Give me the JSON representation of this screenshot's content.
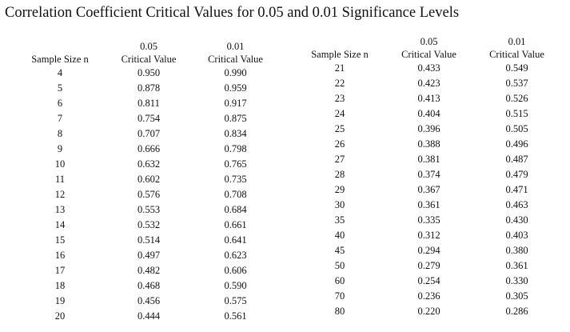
{
  "title": "Correlation Coefficient Critical Values for 0.05 and 0.01 Significance Levels",
  "tables": {
    "left": {
      "headers": {
        "sample_size": "Sample Size n",
        "sig_05": "0.05",
        "sig_01": "0.01",
        "critical_value_05": "Critical Value",
        "critical_value_01": "Critical Value"
      },
      "rows": [
        {
          "n": "4",
          "v05": "0.950",
          "v01": "0.990"
        },
        {
          "n": "5",
          "v05": "0.878",
          "v01": "0.959"
        },
        {
          "n": "6",
          "v05": "0.811",
          "v01": "0.917"
        },
        {
          "n": "7",
          "v05": "0.754",
          "v01": "0.875"
        },
        {
          "n": "8",
          "v05": "0.707",
          "v01": "0.834"
        },
        {
          "n": "9",
          "v05": "0.666",
          "v01": "0.798"
        },
        {
          "n": "10",
          "v05": "0.632",
          "v01": "0.765"
        },
        {
          "n": "11",
          "v05": "0.602",
          "v01": "0.735"
        },
        {
          "n": "12",
          "v05": "0.576",
          "v01": "0.708"
        },
        {
          "n": "13",
          "v05": "0.553",
          "v01": "0.684"
        },
        {
          "n": "14",
          "v05": "0.532",
          "v01": "0.661"
        },
        {
          "n": "15",
          "v05": "0.514",
          "v01": "0.641"
        },
        {
          "n": "16",
          "v05": "0.497",
          "v01": "0.623"
        },
        {
          "n": "17",
          "v05": "0.482",
          "v01": "0.606"
        },
        {
          "n": "18",
          "v05": "0.468",
          "v01": "0.590"
        },
        {
          "n": "19",
          "v05": "0.456",
          "v01": "0.575"
        },
        {
          "n": "20",
          "v05": "0.444",
          "v01": "0.561"
        }
      ]
    },
    "right": {
      "headers": {
        "sample_size": "Sample Size n",
        "sig_05": "0.05",
        "sig_01": "0.01",
        "critical_value_05": "Critical Value",
        "critical_value_01": "Critical Value"
      },
      "rows": [
        {
          "n": "21",
          "v05": "0.433",
          "v01": "0.549"
        },
        {
          "n": "22",
          "v05": "0.423",
          "v01": "0.537"
        },
        {
          "n": "23",
          "v05": "0.413",
          "v01": "0.526"
        },
        {
          "n": "24",
          "v05": "0.404",
          "v01": "0.515"
        },
        {
          "n": "25",
          "v05": "0.396",
          "v01": "0.505"
        },
        {
          "n": "26",
          "v05": "0.388",
          "v01": "0.496"
        },
        {
          "n": "27",
          "v05": "0.381",
          "v01": "0.487"
        },
        {
          "n": "28",
          "v05": "0.374",
          "v01": "0.479"
        },
        {
          "n": "29",
          "v05": "0.367",
          "v01": "0.471"
        },
        {
          "n": "30",
          "v05": "0.361",
          "v01": "0.463"
        },
        {
          "n": "35",
          "v05": "0.335",
          "v01": "0.430"
        },
        {
          "n": "40",
          "v05": "0.312",
          "v01": "0.403"
        },
        {
          "n": "45",
          "v05": "0.294",
          "v01": "0.380"
        },
        {
          "n": "50",
          "v05": "0.279",
          "v01": "0.361"
        },
        {
          "n": "60",
          "v05": "0.254",
          "v01": "0.330"
        },
        {
          "n": "70",
          "v05": "0.236",
          "v01": "0.305"
        },
        {
          "n": "80",
          "v05": "0.220",
          "v01": "0.286"
        }
      ]
    }
  }
}
